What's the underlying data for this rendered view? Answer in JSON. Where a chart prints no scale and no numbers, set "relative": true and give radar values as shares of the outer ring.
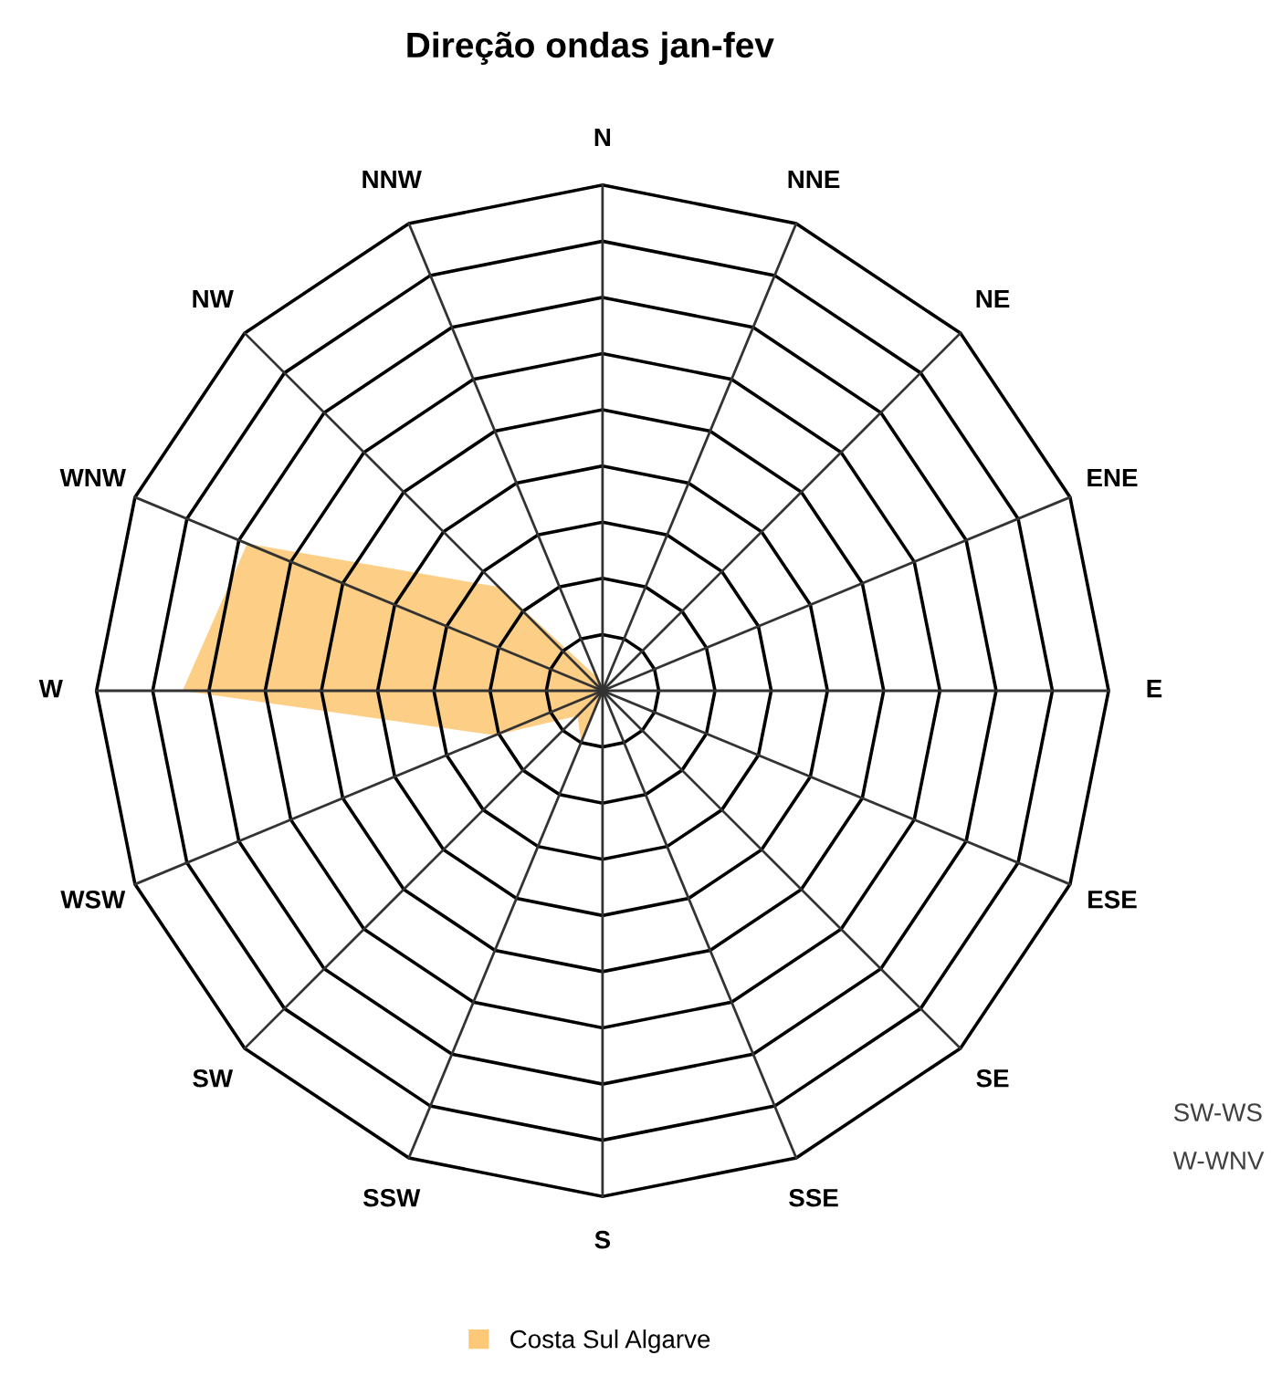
{
  "chart_data": {
    "type": "radar",
    "title": "Direção ondas jan-fev",
    "categories": [
      "N",
      "NNE",
      "NE",
      "ENE",
      "E",
      "ESE",
      "SE",
      "SSE",
      "S",
      "SSW",
      "SW",
      "WSW",
      "W",
      "WNW",
      "NW",
      "NNW"
    ],
    "series": [
      {
        "name": "Costa Sul Algarve",
        "color": "#fdc978",
        "values": [
          0,
          0,
          0,
          0,
          0,
          0,
          0,
          0,
          0,
          0.11,
          0.07,
          0.23,
          0.83,
          0.76,
          0.29,
          0.03
        ]
      }
    ],
    "relative": true,
    "grid": true,
    "legend": "bottom",
    "annotations": [
      "SW-WS",
      "W-WNV"
    ]
  }
}
